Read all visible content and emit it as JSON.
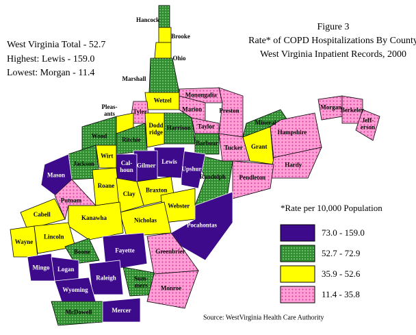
{
  "text_block": {
    "title": [
      "Figure 3",
      "Rate* of COPD Hospitalizations By County",
      "West Virginia Inpatient Records, 2000"
    ],
    "stats": [
      "West Virginia Total - 52.7",
      "Highest:  Lewis - 159.0",
      "Lowest:  Morgan - 11.4"
    ],
    "note": "*Rate per 10,000 Population",
    "source": "Source:  WestVirginia Health Care Authority"
  },
  "legend": [
    {
      "label": "73.0 - 159.0",
      "color": "#3c0a8a"
    },
    {
      "label": "52.7 - 72.9",
      "color": "#2f8f2f"
    },
    {
      "label": "35.9 - 52.6",
      "color": "#ffff00"
    },
    {
      "label": "11.4 - 35.8",
      "color": "#ff9fd6"
    }
  ],
  "counties": [
    {
      "label": [
        "Hancock"
      ],
      "legend": 1
    },
    {
      "label": [
        "Brooke"
      ],
      "legend": 2
    },
    {
      "label": [
        "Ohio"
      ],
      "legend": 2
    },
    {
      "label": [
        "Marshall"
      ],
      "legend": 1
    },
    {
      "label": [
        "Wetzel"
      ],
      "legend": 2
    },
    {
      "label": [
        "Tyler"
      ],
      "legend": 3
    },
    {
      "label": [
        "Pleas-",
        "ants"
      ],
      "legend": 2
    },
    {
      "label": [
        "Wood"
      ],
      "legend": 1
    },
    {
      "label": [
        "Ritchie"
      ],
      "legend": 1
    },
    {
      "label": [
        "Dodd",
        "ridge"
      ],
      "legend": 2
    },
    {
      "label": [
        "Harrison"
      ],
      "legend": 1
    },
    {
      "label": [
        "Marion"
      ],
      "legend": 3
    },
    {
      "label": [
        "Monongalia"
      ],
      "legend": 3
    },
    {
      "label": [
        "Preston"
      ],
      "legend": 3
    },
    {
      "label": [
        "Taylor"
      ],
      "legend": 3
    },
    {
      "label": [
        "Barbour"
      ],
      "legend": 1
    },
    {
      "label": [
        "Tucker"
      ],
      "legend": 3
    },
    {
      "label": [
        "Randolph"
      ],
      "legend": 1
    },
    {
      "label": [
        "Grant"
      ],
      "legend": 2
    },
    {
      "label": [
        "Mineral"
      ],
      "legend": 1
    },
    {
      "label": [
        "Hampshire"
      ],
      "legend": 3
    },
    {
      "label": [
        "Hardy"
      ],
      "legend": 3
    },
    {
      "label": [
        "Pendleton"
      ],
      "legend": 3
    },
    {
      "label": [
        "Morgan"
      ],
      "legend": 3
    },
    {
      "label": [
        "Berkeley"
      ],
      "legend": 3
    },
    {
      "label": [
        "Jeff-",
        "erson"
      ],
      "legend": 3
    },
    {
      "label": [
        "Upshur"
      ],
      "legend": 0
    },
    {
      "label": [
        "Lewis"
      ],
      "legend": 0
    },
    {
      "label": [
        "Gilmer"
      ],
      "legend": 0
    },
    {
      "label": [
        "Cal-",
        "houn"
      ],
      "legend": 0
    },
    {
      "label": [
        "Wirt"
      ],
      "legend": 2
    },
    {
      "label": [
        "Jackson"
      ],
      "legend": 1
    },
    {
      "label": [
        "Mason"
      ],
      "legend": 0
    },
    {
      "label": [
        "Roane"
      ],
      "legend": 2
    },
    {
      "label": [
        "Braxton"
      ],
      "legend": 2
    },
    {
      "label": [
        "Webster"
      ],
      "legend": 2
    },
    {
      "label": [
        "Clay"
      ],
      "legend": 2
    },
    {
      "label": [
        "Nicholas"
      ],
      "legend": 2
    },
    {
      "label": [
        "Kanawha"
      ],
      "legend": 2
    },
    {
      "label": [
        "Putnam"
      ],
      "legend": 3
    },
    {
      "label": [
        "Cabell"
      ],
      "legend": 2
    },
    {
      "label": [
        "Wayne"
      ],
      "legend": 2
    },
    {
      "label": [
        "Lincoln"
      ],
      "legend": 2
    },
    {
      "label": [
        "Boone"
      ],
      "legend": 1
    },
    {
      "label": [
        "Fayette"
      ],
      "legend": 0
    },
    {
      "label": [
        "Pocahontas"
      ],
      "legend": 0
    },
    {
      "label": [
        "Greenbrier"
      ],
      "legend": 3
    },
    {
      "label": [
        "Mingo"
      ],
      "legend": 0
    },
    {
      "label": [
        "Logan"
      ],
      "legend": 0
    },
    {
      "label": [
        "Raleigh"
      ],
      "legend": 0
    },
    {
      "label": [
        "Wyoming"
      ],
      "legend": 0
    },
    {
      "label": [
        "McDowell"
      ],
      "legend": 1
    },
    {
      "label": [
        "Mercer"
      ],
      "legend": 0
    },
    {
      "label": [
        "Sum-",
        "mers"
      ],
      "legend": 1
    },
    {
      "label": [
        "Monroe"
      ],
      "legend": 3
    }
  ]
}
